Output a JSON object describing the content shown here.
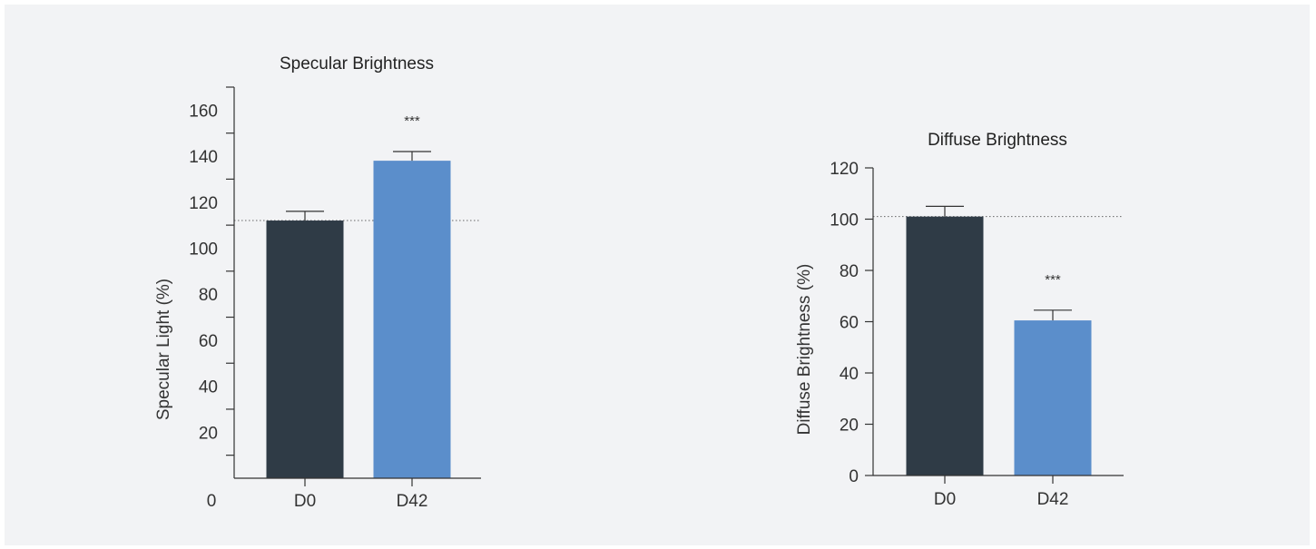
{
  "colors": {
    "dark_bar": "#2f3b46",
    "blue_bar": "#5b8ecb",
    "axis": "#333333",
    "background": "#f2f3f5"
  },
  "chart_data": [
    {
      "type": "bar",
      "title": "Specular Brightness",
      "xlabel": "",
      "ylabel": "Specular Light (%)",
      "categories": [
        "D0",
        "D42"
      ],
      "values": [
        112,
        138
      ],
      "errors": [
        4,
        4
      ],
      "annotations": [
        "",
        "***"
      ],
      "reference_line": 112,
      "ylim": [
        0,
        170
      ],
      "yticks": [
        0,
        20,
        40,
        60,
        80,
        100,
        120,
        140,
        160
      ],
      "ytick_labels": [
        "0",
        "20",
        "40",
        "60",
        "80",
        "100",
        "120",
        "140",
        "160"
      ]
    },
    {
      "type": "bar",
      "title": "Diffuse Brightness",
      "xlabel": "",
      "ylabel": "Diffuse Brightness (%)",
      "categories": [
        "D0",
        "D42"
      ],
      "values": [
        101,
        60.5
      ],
      "errors": [
        4,
        4
      ],
      "annotations": [
        "",
        "***"
      ],
      "reference_line": 101,
      "ylim": [
        0,
        120
      ],
      "yticks": [
        0,
        20,
        40,
        60,
        80,
        100,
        120
      ],
      "ytick_labels": [
        "0",
        "20",
        "40",
        "60",
        "80",
        "100",
        "120"
      ]
    }
  ]
}
